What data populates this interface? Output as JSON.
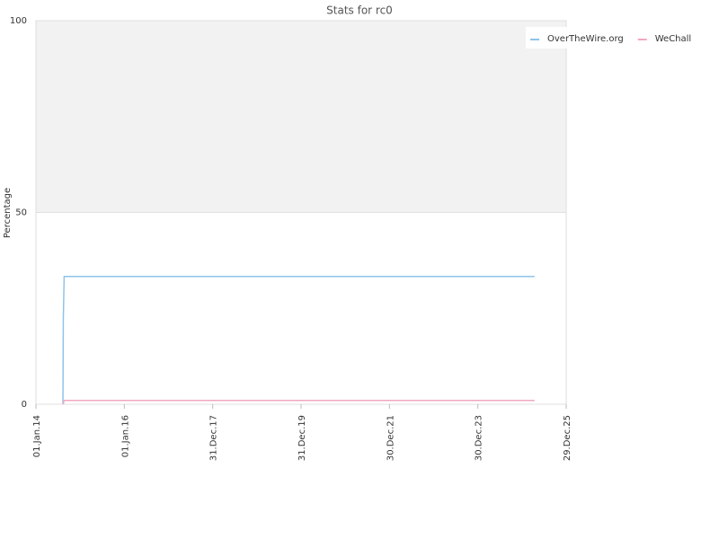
{
  "chart_data": {
    "type": "line",
    "title": "Stats for rc0",
    "y_label": "Percentage",
    "series": [
      {
        "name": "OverTheWire.org",
        "color": "#8ec3ea",
        "x": [
          "2014-08-12",
          "2014-08-15",
          "2014-08-22",
          "2025-04-12"
        ],
        "values": [
          0,
          22.2,
          33.3,
          33.3
        ]
      },
      {
        "name": "WeChall",
        "color": "#f2a7c3",
        "x": [
          "2014-08-15",
          "2014-08-20",
          "2025-04-12"
        ],
        "values": [
          0,
          1,
          1
        ]
      }
    ],
    "xlim": [
      "2014-01-01",
      "2025-12-29"
    ],
    "xticks": [
      {
        "value": "2014-01-01",
        "label": "01.Jan.14"
      },
      {
        "value": "2016-01-01",
        "label": "01.Jan.16"
      },
      {
        "value": "2017-12-31",
        "label": "31.Dec.17"
      },
      {
        "value": "2019-12-31",
        "label": "31.Dec.19"
      },
      {
        "value": "2021-12-30",
        "label": "30.Dec.21"
      },
      {
        "value": "2023-12-30",
        "label": "30.Dec.23"
      },
      {
        "value": "2025-12-29",
        "label": "29.Dec.25"
      }
    ],
    "ylim": [
      0,
      100
    ],
    "yticks": [
      0,
      50,
      100
    ],
    "grid": true,
    "legend": "top-right"
  }
}
